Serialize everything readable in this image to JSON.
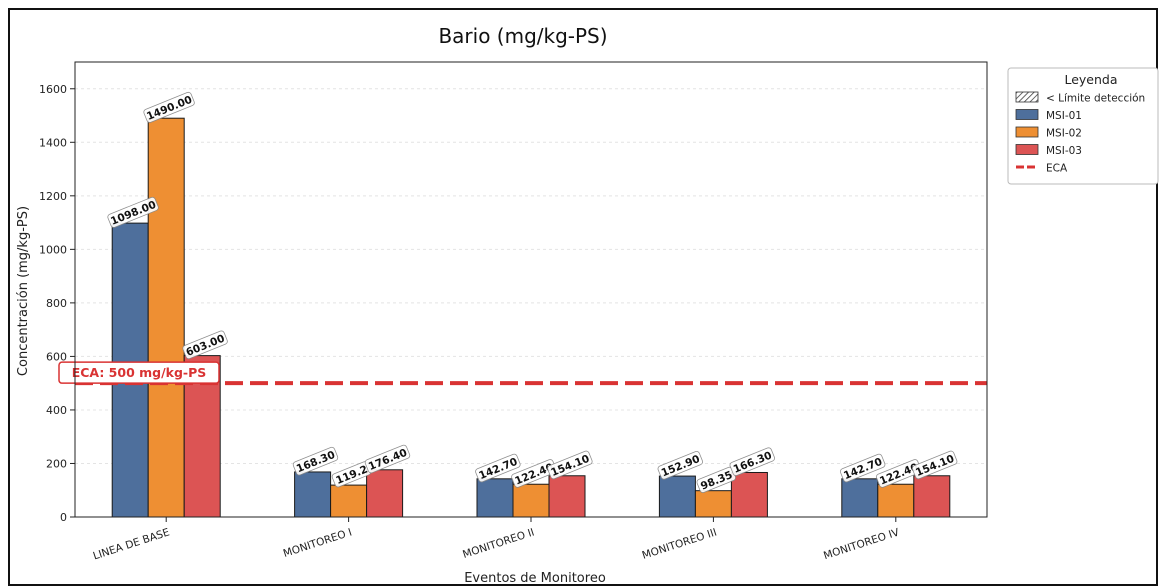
{
  "chart_data": {
    "type": "bar",
    "title": "Bario (mg/kg-PS)",
    "xlabel": "Eventos de Monitoreo",
    "ylabel": "Concentración (mg/kg-PS)",
    "ylim": [
      0,
      1700
    ],
    "yticks": [
      0,
      200,
      400,
      600,
      800,
      1000,
      1200,
      1400,
      1600
    ],
    "grid": true,
    "legend_position": "outside-right",
    "categories": [
      "LINEA DE BASE",
      "MONITOREO I",
      "MONITOREO II",
      "MONITOREO III",
      "MONITOREO IV"
    ],
    "series": [
      {
        "name": "MSI-01",
        "color": "#4e6f9c",
        "values": [
          1098.0,
          168.3,
          142.7,
          152.9,
          142.7
        ],
        "labels": [
          "1098.00",
          "168.30",
          "142.70",
          "152.90",
          "142.70"
        ]
      },
      {
        "name": "MSI-02",
        "color": "#ee8f33",
        "values": [
          1490.0,
          119.2,
          122.4,
          98.35,
          122.4
        ],
        "labels": [
          "1490.00",
          "119.2",
          "122.40",
          "98.35",
          "122.40"
        ]
      },
      {
        "name": "MSI-03",
        "color": "#dc5454",
        "values": [
          603.0,
          176.4,
          154.1,
          166.3,
          154.1
        ],
        "labels": [
          "603.00",
          "176.40",
          "154.10",
          "166.30",
          "154.10"
        ]
      }
    ],
    "reference_line": {
      "name": "ECA",
      "value": 500,
      "label": "ECA: 500 mg/kg-PS",
      "color": "#d93333"
    },
    "legend": {
      "title": "Leyenda",
      "entries": [
        {
          "label": "< Límite detección",
          "style": "hatch"
        },
        {
          "label": "MSI-01",
          "style": "patch",
          "color": "#4e6f9c"
        },
        {
          "label": "MSI-02",
          "style": "patch",
          "color": "#ee8f33"
        },
        {
          "label": "MSI-03",
          "style": "patch",
          "color": "#dc5454"
        },
        {
          "label": "ECA",
          "style": "dashed-line",
          "color": "#d93333"
        }
      ]
    }
  }
}
